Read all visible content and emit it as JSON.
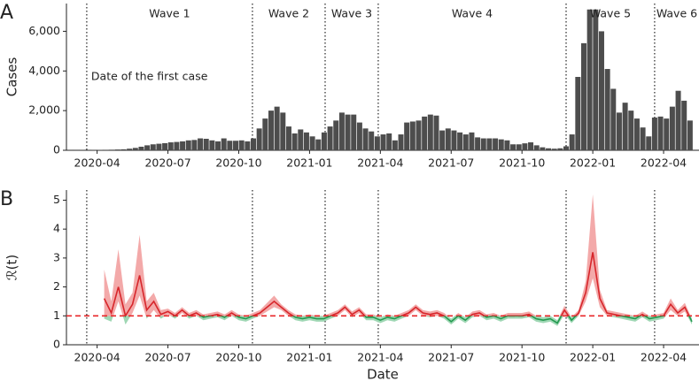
{
  "chart_data": [
    {
      "type": "bar",
      "panel_label": "A",
      "ylabel": "Cases",
      "color": "#4d4d4d",
      "xlim": [
        1.7,
        28.5
      ],
      "xticks": [
        {
          "value": 3,
          "label": "2020-04"
        },
        {
          "value": 6,
          "label": "2020-07"
        },
        {
          "value": 9,
          "label": "2020-10"
        },
        {
          "value": 12,
          "label": "2021-01"
        },
        {
          "value": 15,
          "label": "2021-04"
        },
        {
          "value": 18,
          "label": "2021-07"
        },
        {
          "value": 21,
          "label": "2021-10"
        },
        {
          "value": 24,
          "label": "2022-01"
        },
        {
          "value": 27,
          "label": "2022-04"
        }
      ],
      "ylim": [
        0,
        7400
      ],
      "yticks": [
        0,
        {
          "value": 2000,
          "label": "2,000"
        },
        {
          "value": 4000,
          "label": "4,000"
        },
        {
          "value": 6000,
          "label": "6,000"
        }
      ],
      "dividers": [
        2.56,
        9.58,
        12.66,
        14.91,
        22.87,
        26.62
      ],
      "waves": [
        "Wave 1",
        "Wave 2",
        "Wave 3",
        "Wave 4",
        "Wave 5",
        "Wave 6"
      ],
      "annotation": "Date of the first case",
      "x": [
        1.87,
        2.12,
        2.37,
        2.62,
        2.87,
        3.12,
        3.37,
        3.62,
        3.87,
        4.12,
        4.37,
        4.62,
        4.87,
        5.12,
        5.37,
        5.62,
        5.87,
        6.12,
        6.37,
        6.62,
        6.87,
        7.12,
        7.37,
        7.62,
        7.87,
        8.12,
        8.37,
        8.62,
        8.87,
        9.12,
        9.37,
        9.62,
        9.87,
        10.12,
        10.37,
        10.62,
        10.87,
        11.12,
        11.37,
        11.62,
        11.87,
        12.12,
        12.37,
        12.62,
        12.87,
        13.12,
        13.37,
        13.62,
        13.87,
        14.12,
        14.37,
        14.62,
        14.87,
        15.12,
        15.37,
        15.62,
        15.87,
        16.12,
        16.37,
        16.62,
        16.87,
        17.12,
        17.37,
        17.62,
        17.87,
        18.12,
        18.37,
        18.62,
        18.87,
        19.12,
        19.37,
        19.62,
        19.87,
        20.12,
        20.37,
        20.62,
        20.87,
        21.12,
        21.37,
        21.62,
        21.87,
        22.12,
        22.37,
        22.62,
        22.87,
        23.12,
        23.37,
        23.62,
        23.87,
        24.12,
        24.37,
        24.62,
        24.87,
        25.12,
        25.37,
        25.62,
        25.87,
        26.12,
        26.37,
        26.62,
        26.87,
        27.12,
        27.37,
        27.62,
        27.87,
        28.12
      ],
      "values": [
        5,
        5,
        10,
        10,
        15,
        20,
        25,
        30,
        40,
        50,
        80,
        120,
        180,
        250,
        300,
        330,
        360,
        400,
        420,
        450,
        500,
        520,
        600,
        580,
        500,
        450,
        600,
        480,
        480,
        500,
        450,
        600,
        1100,
        1600,
        2000,
        2200,
        1900,
        1200,
        850,
        1050,
        900,
        700,
        550,
        900,
        1200,
        1500,
        1900,
        1800,
        1800,
        1400,
        1100,
        950,
        700,
        800,
        850,
        500,
        800,
        1400,
        1450,
        1500,
        1700,
        1800,
        1750,
        1000,
        1100,
        1000,
        900,
        800,
        900,
        650,
        600,
        600,
        600,
        550,
        500,
        300,
        300,
        350,
        400,
        250,
        150,
        100,
        80,
        100,
        200,
        800,
        3700,
        5400,
        7100,
        7100,
        6000,
        4100,
        3100,
        1900,
        2400,
        2000,
        1600,
        1150,
        700,
        1650,
        1700,
        1600,
        2200,
        3000,
        2500,
        1500
      ]
    },
    {
      "type": "line",
      "panel_label": "B",
      "ylabel": "ℛ(t)",
      "xlabel": "Date",
      "xlim": [
        1.7,
        28.5
      ],
      "xticks": [
        {
          "value": 3,
          "label": "2020-04"
        },
        {
          "value": 6,
          "label": "2020-07"
        },
        {
          "value": 9,
          "label": "2020-10"
        },
        {
          "value": 12,
          "label": "2021-01"
        },
        {
          "value": 15,
          "label": "2021-04"
        },
        {
          "value": 18,
          "label": "2021-07"
        },
        {
          "value": 21,
          "label": "2021-10"
        },
        {
          "value": 24,
          "label": "2022-01"
        },
        {
          "value": 27,
          "label": "2022-04"
        }
      ],
      "ylim": [
        0,
        5.35
      ],
      "yticks": [
        0,
        1,
        2,
        3,
        4,
        5
      ],
      "dividers": [
        2.56,
        9.58,
        12.66,
        14.91,
        22.87,
        26.62
      ],
      "reference_line": {
        "value": 1,
        "color": "#e8272a"
      },
      "color_above": "#d7262b",
      "color_below": "#239a50",
      "band_above": "#f3a9a9",
      "band_below": "#9fd7b4",
      "x": [
        3.3,
        3.6,
        3.9,
        4.2,
        4.5,
        4.8,
        5.1,
        5.4,
        5.7,
        6,
        6.3,
        6.6,
        6.9,
        7.2,
        7.5,
        7.8,
        8.1,
        8.4,
        8.7,
        9,
        9.3,
        9.6,
        9.9,
        10.2,
        10.5,
        10.8,
        11.1,
        11.4,
        11.7,
        12,
        12.3,
        12.6,
        12.9,
        13.2,
        13.5,
        13.8,
        14.1,
        14.4,
        14.7,
        15,
        15.3,
        15.6,
        15.9,
        16.2,
        16.5,
        16.8,
        17.1,
        17.4,
        17.7,
        18,
        18.3,
        18.6,
        18.9,
        19.2,
        19.5,
        19.8,
        20.1,
        20.4,
        20.7,
        21,
        21.3,
        21.6,
        21.9,
        22.2,
        22.5,
        22.8,
        23.1,
        23.4,
        23.7,
        24,
        24.3,
        24.6,
        24.9,
        25.2,
        25.5,
        25.8,
        26.1,
        26.4,
        26.7,
        27,
        27.3,
        27.6,
        27.9,
        28.2
      ],
      "values": [
        1.6,
        1.1,
        2.0,
        1.0,
        1.4,
        2.4,
        1.2,
        1.5,
        1.05,
        1.15,
        1.0,
        1.2,
        1.0,
        1.1,
        0.95,
        1.0,
        1.05,
        0.95,
        1.1,
        0.95,
        0.9,
        1.0,
        1.1,
        1.3,
        1.5,
        1.3,
        1.1,
        0.95,
        0.9,
        0.95,
        0.9,
        0.9,
        1.0,
        1.1,
        1.3,
        1.05,
        1.2,
        0.95,
        0.95,
        0.85,
        0.95,
        0.9,
        1.0,
        1.1,
        1.3,
        1.1,
        1.05,
        1.1,
        1.0,
        0.8,
        1.0,
        0.85,
        1.05,
        1.1,
        0.95,
        1.0,
        0.9,
        1.0,
        1.0,
        1.0,
        1.05,
        0.9,
        0.85,
        0.9,
        0.75,
        1.2,
        0.85,
        1.1,
        1.8,
        3.2,
        1.6,
        1.1,
        1.05,
        1.0,
        0.95,
        0.9,
        1.05,
        0.9,
        0.95,
        1.0,
        1.4,
        1.1,
        1.3,
        0.8
      ],
      "lower": [
        0.9,
        0.8,
        1.5,
        0.7,
        1.1,
        1.7,
        0.9,
        1.2,
        0.9,
        1.05,
        0.9,
        1.1,
        0.9,
        1.0,
        0.85,
        0.9,
        0.95,
        0.85,
        1.0,
        0.85,
        0.8,
        0.9,
        1.0,
        1.15,
        1.3,
        1.2,
        1.0,
        0.85,
        0.8,
        0.85,
        0.8,
        0.8,
        0.9,
        1.0,
        1.2,
        0.95,
        1.1,
        0.85,
        0.85,
        0.75,
        0.85,
        0.8,
        0.9,
        1.0,
        1.2,
        1.0,
        0.95,
        1.0,
        0.9,
        0.7,
        0.9,
        0.75,
        0.95,
        1.0,
        0.85,
        0.9,
        0.8,
        0.9,
        0.9,
        0.9,
        0.95,
        0.8,
        0.75,
        0.8,
        0.65,
        1.05,
        0.75,
        1.0,
        1.5,
        2.3,
        1.3,
        1.0,
        0.95,
        0.9,
        0.85,
        0.8,
        0.95,
        0.8,
        0.85,
        0.9,
        1.2,
        1.0,
        1.15,
        0.7
      ],
      "upper": [
        2.6,
        1.5,
        3.3,
        1.4,
        1.8,
        3.8,
        1.5,
        1.8,
        1.2,
        1.25,
        1.1,
        1.3,
        1.1,
        1.2,
        1.05,
        1.1,
        1.15,
        1.05,
        1.2,
        1.05,
        1.0,
        1.1,
        1.2,
        1.45,
        1.7,
        1.4,
        1.2,
        1.05,
        1.0,
        1.05,
        1.0,
        1.0,
        1.1,
        1.2,
        1.4,
        1.15,
        1.3,
        1.05,
        1.05,
        0.95,
        1.05,
        1.0,
        1.1,
        1.2,
        1.4,
        1.2,
        1.15,
        1.2,
        1.1,
        0.9,
        1.1,
        0.95,
        1.15,
        1.2,
        1.05,
        1.1,
        1.0,
        1.1,
        1.1,
        1.1,
        1.15,
        1.0,
        0.95,
        1.0,
        0.85,
        1.35,
        0.95,
        1.2,
        2.2,
        5.2,
        1.9,
        1.2,
        1.15,
        1.1,
        1.05,
        1.0,
        1.15,
        1.0,
        1.05,
        1.1,
        1.6,
        1.2,
        1.45,
        0.9
      ]
    }
  ]
}
